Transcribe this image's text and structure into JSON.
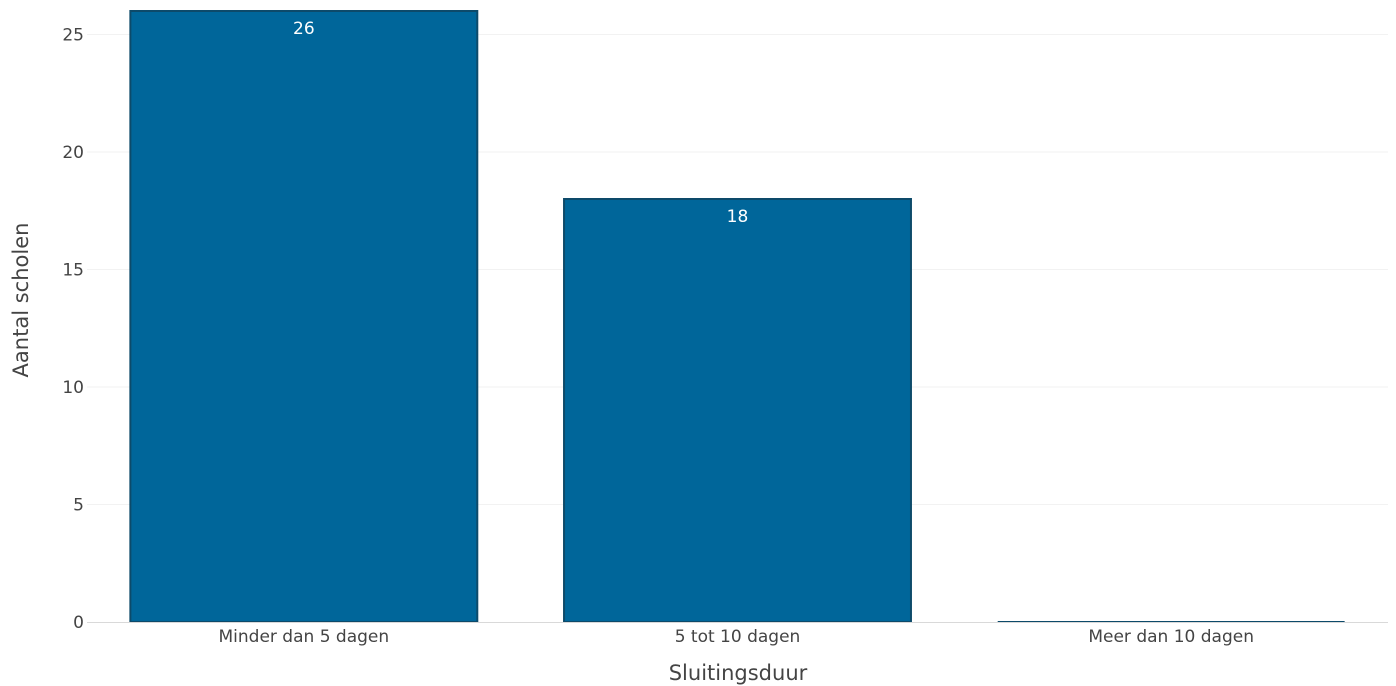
{
  "chart_data": {
    "type": "bar",
    "categories": [
      "Minder dan 5 dagen",
      "5 tot 10 dagen",
      "Meer dan 10 dagen"
    ],
    "values": [
      26,
      18,
      0
    ],
    "data_labels": [
      "26",
      "18",
      ""
    ],
    "title": "",
    "xlabel": "Sluitingsduur",
    "ylabel": "Aantal scholen",
    "ylim": [
      0,
      26
    ],
    "yticks": [
      0,
      5,
      10,
      15,
      20,
      25
    ],
    "grid": true,
    "bar_color": "#00669a",
    "bar_outline_color": "#0d4a6a",
    "gridline_color": "#f2f2f2",
    "axis_line_color": "#d9d9d9",
    "text_color": "#444444",
    "data_label_color": "#ffffff"
  }
}
